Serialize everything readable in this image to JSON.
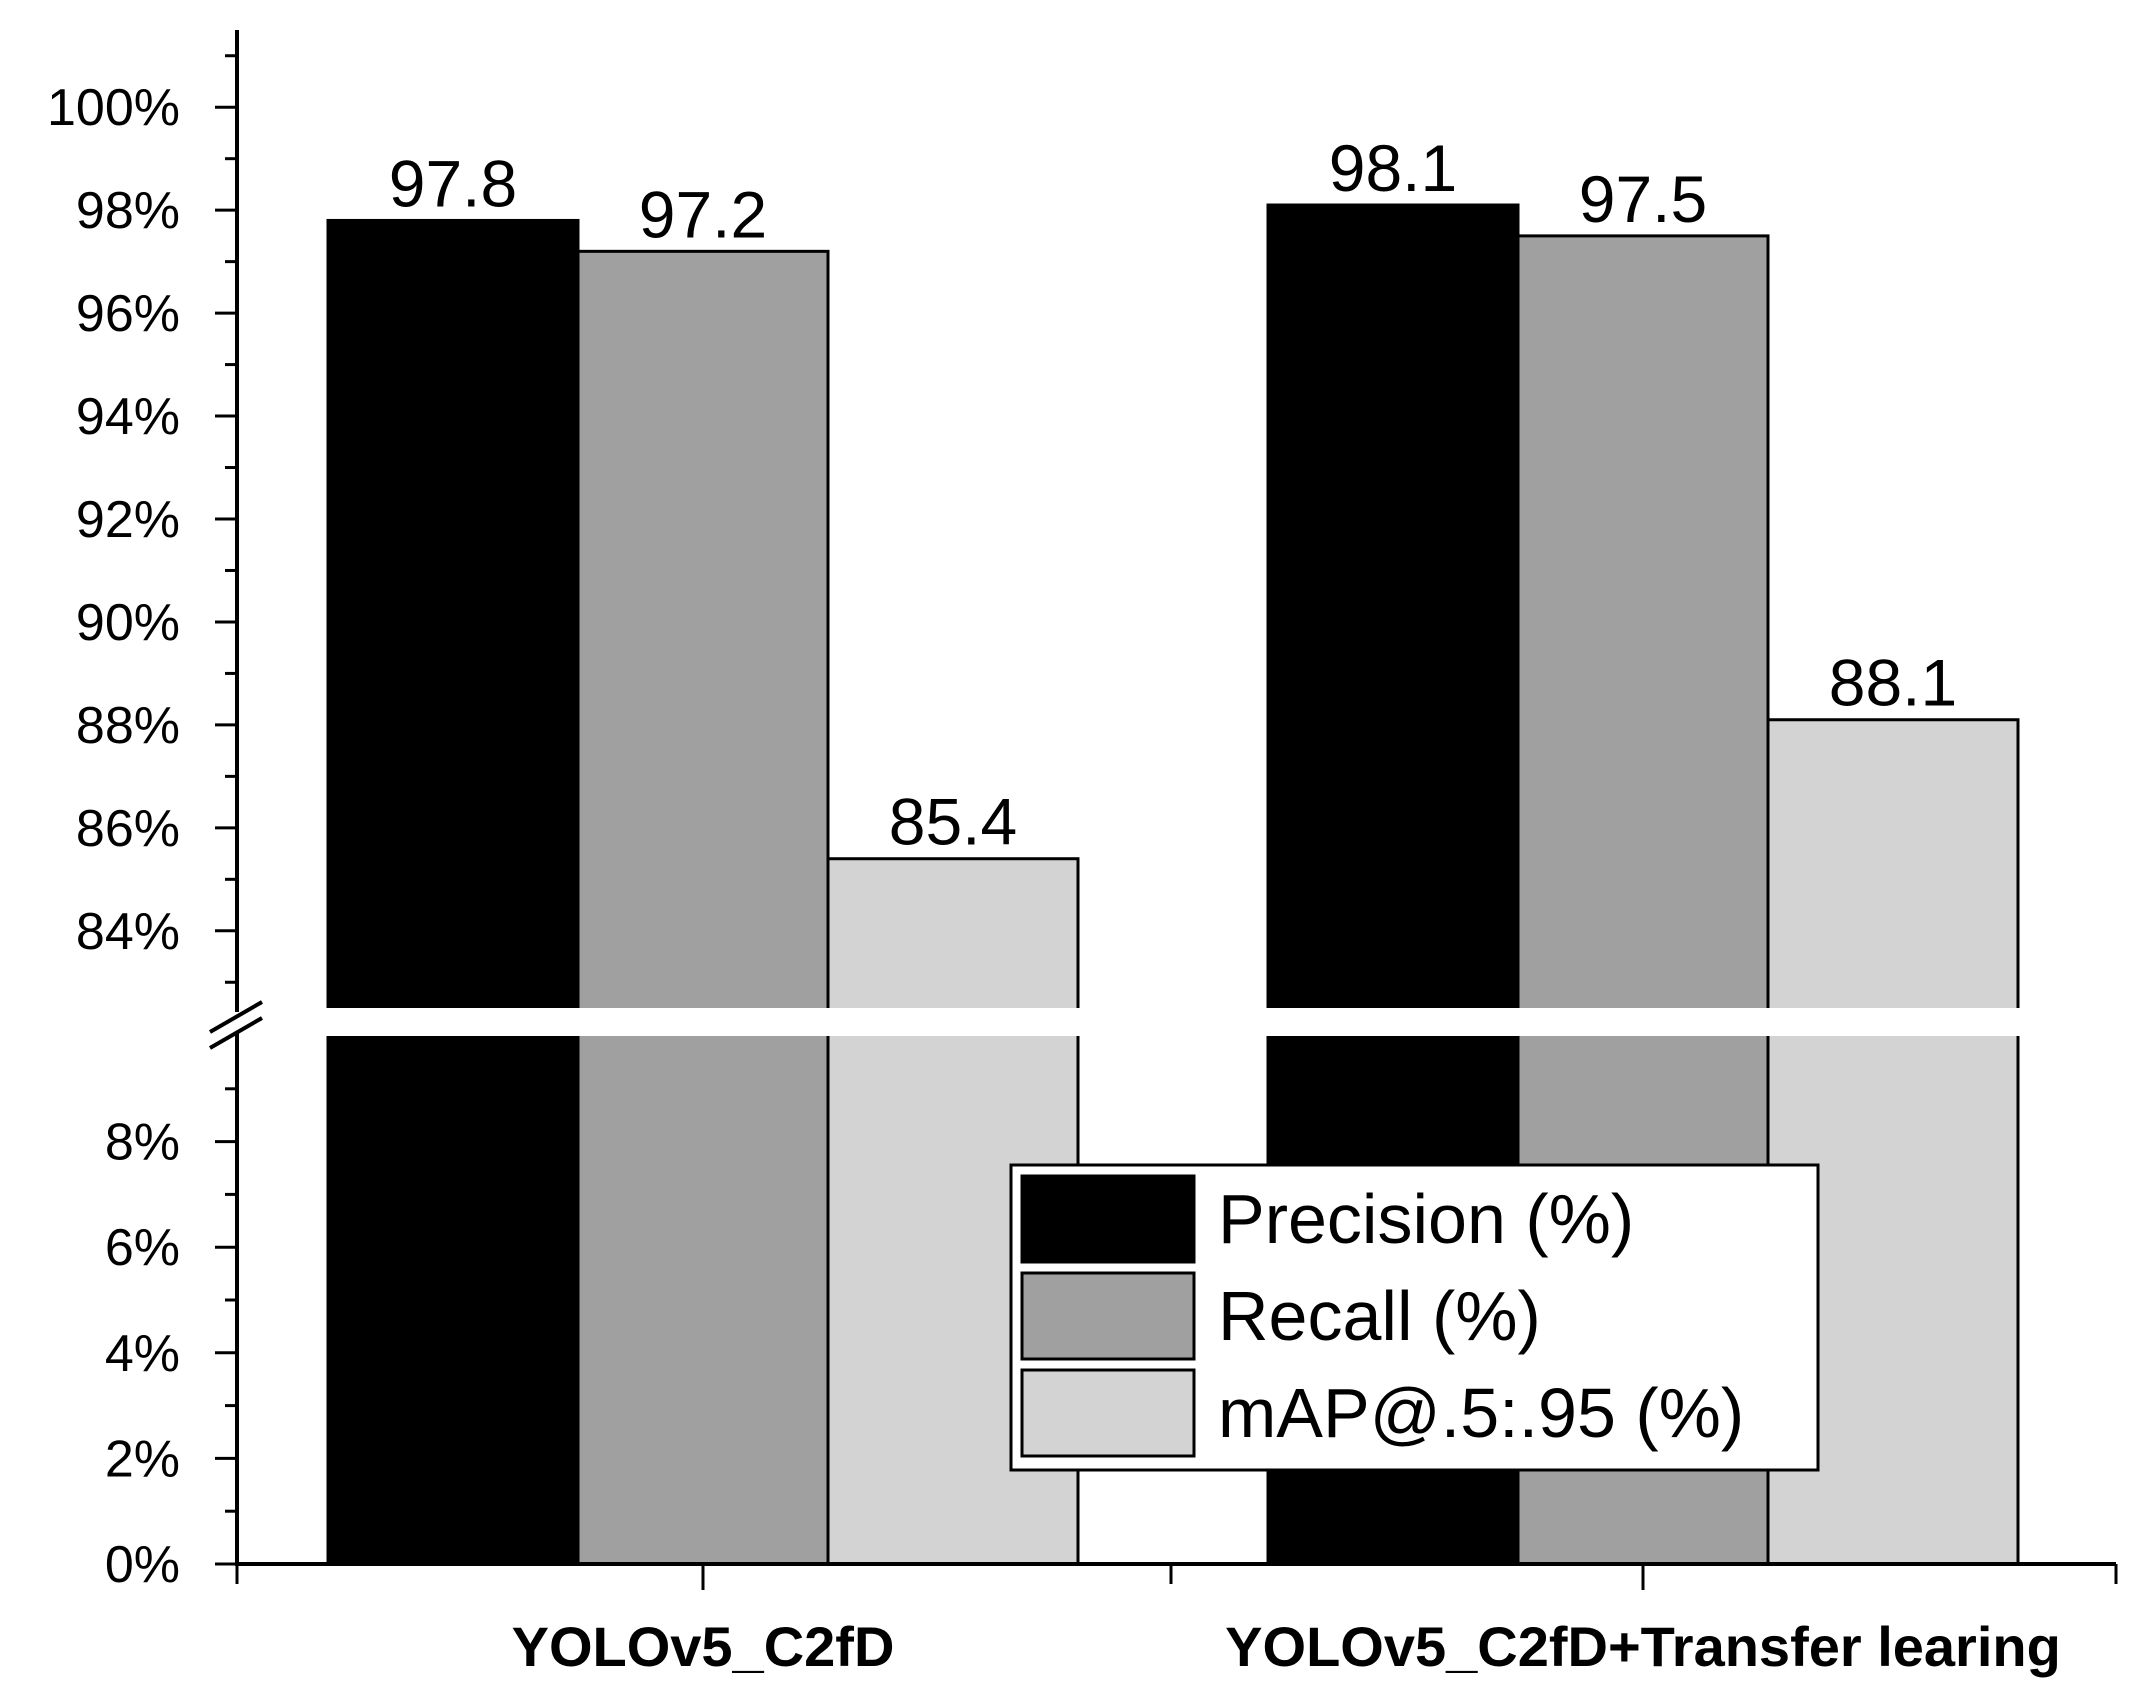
{
  "chart_data": {
    "type": "bar",
    "title": "",
    "xlabel": "",
    "ylabel": "",
    "categories": [
      "YOLOv5_C2fD",
      "YOLOv5_C2fD+Transfer learing"
    ],
    "category_labels": [
      "YOLOv5_C2fD",
      "YOLOv5_C2fD+Transfer learing"
    ],
    "series": [
      {
        "name": "Precision (%)",
        "values": [
          97.8,
          98.1
        ],
        "value_labels": [
          "97.8",
          "98.1"
        ],
        "color": "#000000"
      },
      {
        "name": "Recall (%)",
        "values": [
          97.2,
          97.5
        ],
        "value_labels": [
          "97.2",
          "97.5"
        ],
        "color": "#a0a0a0"
      },
      {
        "name": "mAP@.5:.95 (%)",
        "values": [
          85.4,
          88.1
        ],
        "value_labels": [
          "85.4",
          "88.1"
        ],
        "color": "#d3d3d3"
      }
    ],
    "y_axis_broken": true,
    "ylim_lower": [
      0,
      10
    ],
    "ylim_upper": [
      82.5,
      101.5
    ],
    "yticks_lower": [
      0,
      2,
      4,
      6,
      8
    ],
    "ytick_labels_lower": [
      "0%",
      "2%",
      "4%",
      "6%",
      "8%"
    ],
    "yticks_upper": [
      84,
      86,
      88,
      90,
      92,
      94,
      96,
      98,
      100
    ],
    "ytick_labels_upper": [
      "84%",
      "86%",
      "88%",
      "90%",
      "92%",
      "94%",
      "96%",
      "98%",
      "100%"
    ],
    "legend_position": "lower-right",
    "grid": false
  }
}
